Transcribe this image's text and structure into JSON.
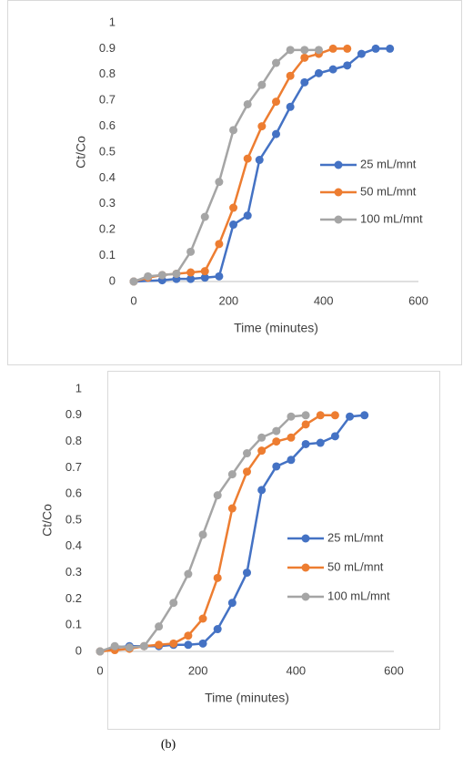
{
  "chart_data": [
    {
      "type": "line",
      "xlabel": "Time (minutes)",
      "ylabel": "Ct/Co",
      "xlim": [
        0,
        600
      ],
      "xticks": [
        0,
        200,
        400,
        600
      ],
      "ylim": [
        0,
        1
      ],
      "yticks": [
        0,
        0.1,
        0.2,
        0.3,
        0.4,
        0.5,
        0.6,
        0.7,
        0.8,
        0.9,
        1
      ],
      "grid": false,
      "legend": "right",
      "series": [
        {
          "name": "25 mL/mnt",
          "color": "#4472c4",
          "x": [
            0,
            60,
            90,
            120,
            150,
            180,
            210,
            240,
            265,
            300,
            330,
            360,
            390,
            420,
            450,
            480,
            510,
            540
          ],
          "values": [
            0,
            0.005,
            0.01,
            0.01,
            0.015,
            0.02,
            0.22,
            0.255,
            0.47,
            0.57,
            0.675,
            0.77,
            0.805,
            0.82,
            0.835,
            0.88,
            0.9,
            0.9
          ]
        },
        {
          "name": "50 mL/mnt",
          "color": "#ed7d31",
          "x": [
            0,
            30,
            60,
            90,
            120,
            150,
            180,
            210,
            240,
            270,
            300,
            330,
            360,
            390,
            420,
            450
          ],
          "values": [
            0,
            0.015,
            0.025,
            0.03,
            0.035,
            0.04,
            0.145,
            0.285,
            0.475,
            0.6,
            0.695,
            0.795,
            0.865,
            0.88,
            0.9,
            0.9
          ]
        },
        {
          "name": "100 mL/mnt",
          "color": "#a5a5a5",
          "x": [
            0,
            30,
            60,
            90,
            120,
            150,
            180,
            210,
            240,
            270,
            300,
            330,
            360,
            390
          ],
          "values": [
            0,
            0.02,
            0.025,
            0.03,
            0.115,
            0.25,
            0.385,
            0.585,
            0.685,
            0.76,
            0.845,
            0.895,
            0.895,
            0.895
          ]
        }
      ]
    },
    {
      "type": "line",
      "xlabel": "Time (minutes)",
      "ylabel": "Ct/Co",
      "xlim": [
        0,
        600
      ],
      "xticks": [
        0,
        200,
        400,
        600
      ],
      "ylim": [
        0,
        1
      ],
      "yticks": [
        0,
        0.1,
        0.2,
        0.3,
        0.4,
        0.5,
        0.6,
        0.7,
        0.8,
        0.9,
        1
      ],
      "grid": false,
      "legend": "right",
      "series": [
        {
          "name": "25 mL/mnt",
          "color": "#4472c4",
          "x": [
            0,
            30,
            60,
            90,
            120,
            150,
            180,
            210,
            240,
            270,
            300,
            330,
            360,
            390,
            420,
            450,
            480,
            510,
            540
          ],
          "values": [
            0,
            0.015,
            0.02,
            0.02,
            0.02,
            0.025,
            0.025,
            0.03,
            0.085,
            0.185,
            0.3,
            0.615,
            0.705,
            0.73,
            0.79,
            0.795,
            0.82,
            0.895,
            0.9
          ]
        },
        {
          "name": "50 mL/mnt",
          "color": "#ed7d31",
          "x": [
            0,
            30,
            60,
            90,
            120,
            150,
            180,
            210,
            240,
            270,
            300,
            330,
            360,
            390,
            420,
            450,
            480
          ],
          "values": [
            0,
            0.005,
            0.01,
            0.02,
            0.025,
            0.03,
            0.06,
            0.125,
            0.28,
            0.545,
            0.685,
            0.765,
            0.8,
            0.815,
            0.865,
            0.9,
            0.9
          ]
        },
        {
          "name": "100 mL/mnt",
          "color": "#a5a5a5",
          "x": [
            0,
            30,
            60,
            90,
            120,
            150,
            180,
            210,
            240,
            270,
            300,
            330,
            360,
            390,
            420
          ],
          "values": [
            0,
            0.02,
            0.015,
            0.02,
            0.095,
            0.185,
            0.295,
            0.445,
            0.595,
            0.675,
            0.755,
            0.815,
            0.84,
            0.895,
            0.9
          ]
        }
      ]
    }
  ],
  "caption": "(b)"
}
